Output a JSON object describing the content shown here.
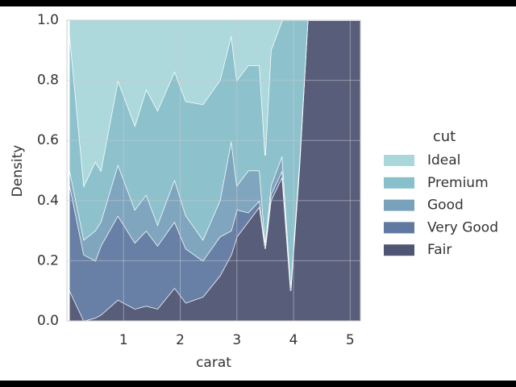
{
  "chart_data": {
    "type": "area",
    "stacked": "fill",
    "xlabel": "carat",
    "ylabel": "Density",
    "x": [
      0.05,
      0.3,
      0.5,
      0.6,
      0.9,
      1.2,
      1.4,
      1.6,
      1.9,
      2.1,
      2.4,
      2.7,
      2.9,
      3.0,
      3.2,
      3.4,
      3.5,
      3.6,
      3.8,
      3.95,
      4.1,
      4.25,
      5.18
    ],
    "series": [
      {
        "name": "Ideal",
        "color": "#a9d7da",
        "values": [
          0.05,
          0.55,
          0.47,
          0.5,
          0.2,
          0.35,
          0.23,
          0.3,
          0.17,
          0.27,
          0.28,
          0.2,
          0.05,
          0.2,
          0.15,
          0.15,
          0.45,
          0.1,
          0,
          0,
          0,
          0,
          0
        ]
      },
      {
        "name": "Premium",
        "color": "#87bfca",
        "values": [
          0.45,
          0.18,
          0.23,
          0.17,
          0.28,
          0.28,
          0.35,
          0.38,
          0.36,
          0.38,
          0.45,
          0.4,
          0.35,
          0.35,
          0.35,
          0.35,
          0.29,
          0.45,
          0.45,
          0.88,
          0.48,
          0,
          0
        ]
      },
      {
        "name": "Good",
        "color": "#78a1bb",
        "values": [
          0.05,
          0.05,
          0.1,
          0.08,
          0.17,
          0.11,
          0.12,
          0.07,
          0.14,
          0.11,
          0.07,
          0.12,
          0.3,
          0.08,
          0.14,
          0.1,
          0.01,
          0.03,
          0.05,
          0.01,
          0.01,
          0,
          0
        ]
      },
      {
        "name": "Very Good",
        "color": "#6079a0",
        "values": [
          0.35,
          0.22,
          0.19,
          0.23,
          0.28,
          0.22,
          0.25,
          0.21,
          0.22,
          0.18,
          0.12,
          0.13,
          0.08,
          0.09,
          0.03,
          0.02,
          0.01,
          0.02,
          0.02,
          0.01,
          0.01,
          0,
          0
        ]
      },
      {
        "name": "Fair",
        "color": "#4f5573",
        "values": [
          0.1,
          0.0,
          0.01,
          0.02,
          0.07,
          0.04,
          0.05,
          0.04,
          0.11,
          0.06,
          0.08,
          0.15,
          0.22,
          0.28,
          0.33,
          0.38,
          0.24,
          0.4,
          0.48,
          0.1,
          0.5,
          1,
          1
        ]
      }
    ],
    "legend_title": "cut",
    "legend": "right",
    "xlim": [
      0,
      5.18
    ],
    "ylim": [
      0,
      1
    ],
    "xticks": [
      1,
      2,
      3,
      4,
      5
    ],
    "yticks": [
      {
        "value": 0,
        "label": "0.0"
      },
      0.2,
      0.4,
      0.6,
      0.8,
      {
        "value": 1,
        "label": "1.0"
      }
    ],
    "grid": true
  }
}
